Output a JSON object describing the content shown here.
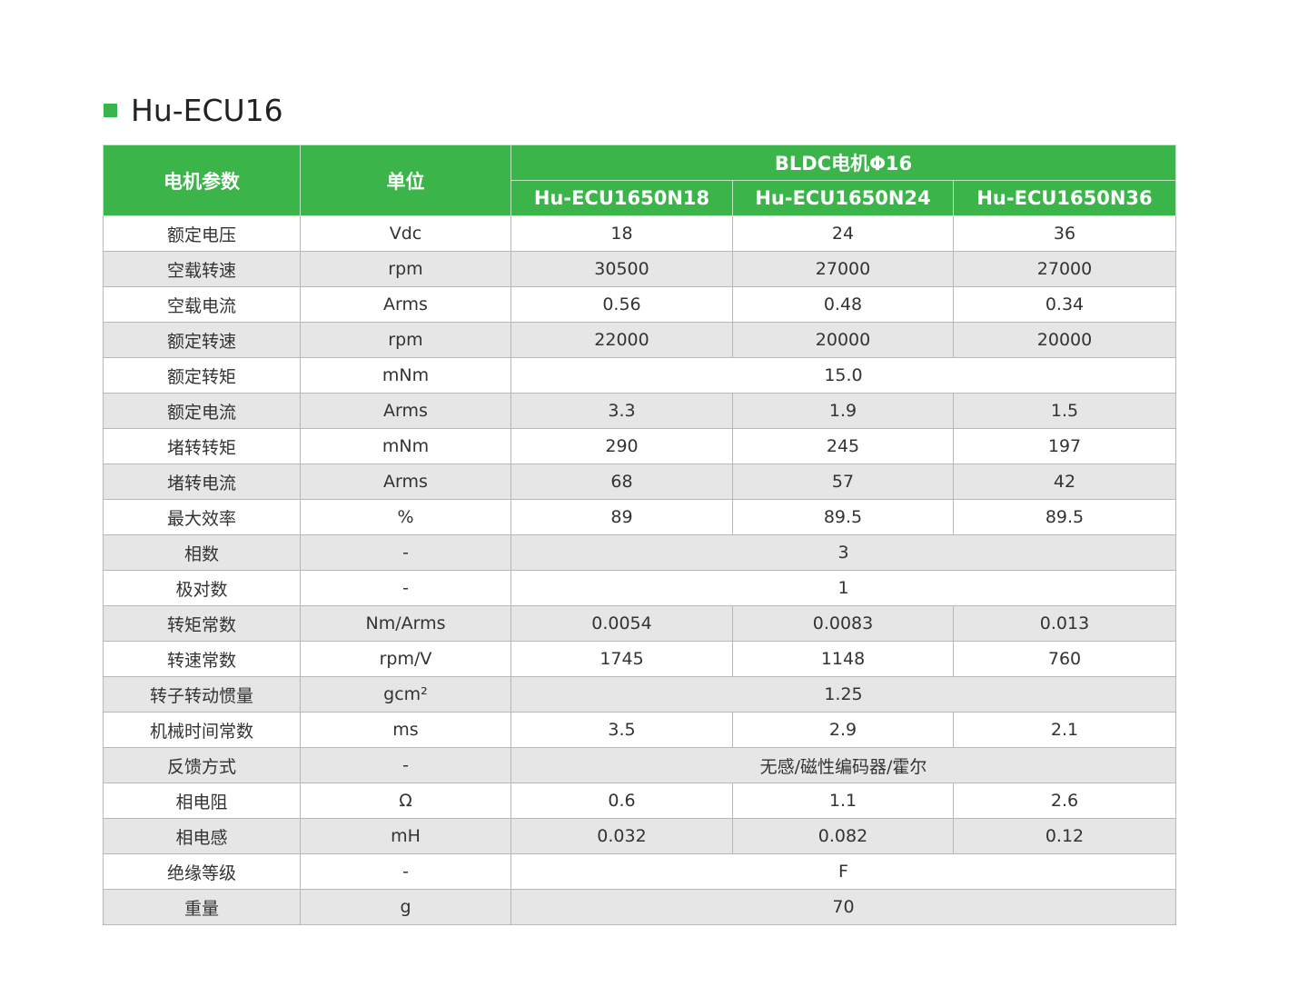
{
  "header": {
    "title": "Hu-ECU16"
  },
  "table": {
    "col_headers": [
      "电机参数",
      "单位"
    ],
    "group_header": "BLDC电机Φ16",
    "models": [
      "Hu-ECU1650N18",
      "Hu-ECU1650N24",
      "Hu-ECU1650N36"
    ],
    "rows": [
      [
        "额定电压",
        "Vdc",
        "18",
        "24",
        "36"
      ],
      [
        "空载转速",
        "rpm",
        "30500",
        "27000",
        "27000"
      ],
      [
        "空载电流",
        "Arms",
        "0.56",
        "0.48",
        "0.34"
      ],
      [
        "额定转速",
        "rpm",
        "22000",
        "20000",
        "20000"
      ],
      [
        "额定转矩",
        "mNm",
        "15.0"
      ],
      [
        "额定电流",
        "Arms",
        "3.3",
        "1.9",
        "1.5"
      ],
      [
        "堵转转矩",
        "mNm",
        "290",
        "245",
        "197"
      ],
      [
        "堵转电流",
        "Arms",
        "68",
        "57",
        "42"
      ],
      [
        "最大效率",
        "%",
        "89",
        "89.5",
        "89.5"
      ],
      [
        "相数",
        "-",
        "3"
      ],
      [
        "极对数",
        "-",
        "1"
      ],
      [
        "转矩常数",
        "Nm/Arms",
        "0.0054",
        "0.0083",
        "0.013"
      ],
      [
        "转速常数",
        "rpm/V",
        "1745",
        "1148",
        "760"
      ],
      [
        "转子转动惯量",
        "gcm²",
        "1.25"
      ],
      [
        "机械时间常数",
        "ms",
        "3.5",
        "2.9",
        "2.1"
      ],
      [
        "反馈方式",
        "-",
        "无感/磁性编码器/霍尔"
      ],
      [
        "相电阻",
        "Ω",
        "0.6",
        "1.1",
        "2.6"
      ],
      [
        "相电感",
        "mH",
        "0.032",
        "0.082",
        "0.12"
      ],
      [
        "绝缘等级",
        "-",
        "F"
      ],
      [
        "重量",
        "g",
        "70"
      ]
    ]
  }
}
